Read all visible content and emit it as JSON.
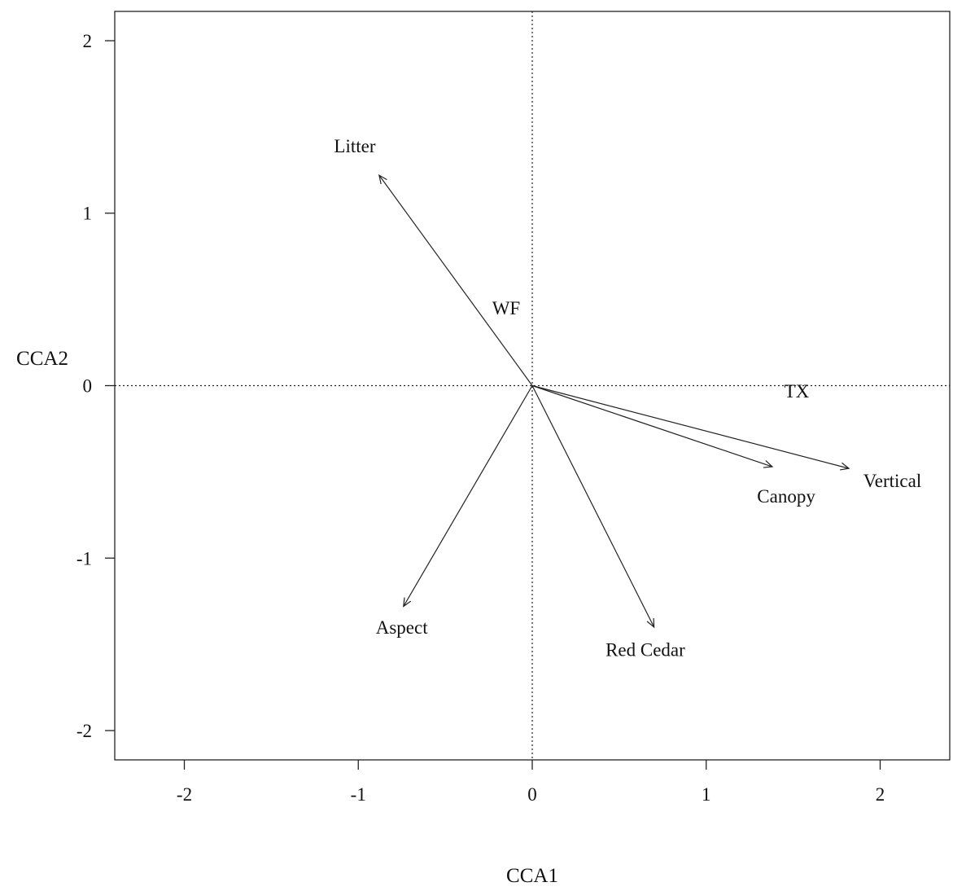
{
  "chart_data": {
    "type": "scatter",
    "title": "",
    "xlabel": "CCA1",
    "ylabel": "CCA2",
    "xlim": [
      -2.4,
      2.4
    ],
    "ylim": [
      -2.17,
      2.17
    ],
    "xticks": [
      -2,
      -1,
      0,
      1,
      2
    ],
    "yticks": [
      -2,
      -1,
      0,
      1,
      2
    ],
    "xtick_labels": [
      "-2",
      "-1",
      "0",
      "1",
      "2"
    ],
    "ytick_labels": [
      "-2",
      "-1",
      "0",
      "1",
      "2"
    ],
    "zero_lines": true,
    "vectors": [
      {
        "name": "Litter",
        "x": -0.88,
        "y": 1.22,
        "label_x": -1.02,
        "label_y": 1.39
      },
      {
        "name": "Aspect",
        "x": -0.74,
        "y": -1.28,
        "label_x": -0.75,
        "label_y": -1.4
      },
      {
        "name": "Red Cedar",
        "x": 0.7,
        "y": -1.4,
        "label_x": 0.65,
        "label_y": -1.53
      },
      {
        "name": "Canopy",
        "x": 1.38,
        "y": -0.47,
        "label_x": 1.46,
        "label_y": -0.64
      },
      {
        "name": "Vertical",
        "x": 1.82,
        "y": -0.48,
        "label_x": 2.07,
        "label_y": -0.55
      }
    ],
    "points": [
      {
        "name": "WF",
        "x": -0.15,
        "y": 0.45
      },
      {
        "name": "TX",
        "x": 1.52,
        "y": -0.03
      }
    ]
  }
}
